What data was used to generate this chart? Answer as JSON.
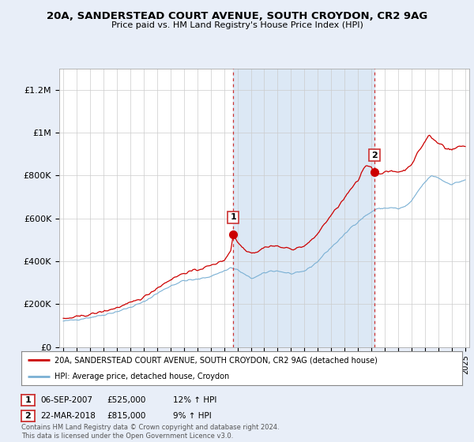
{
  "title_line1": "20A, SANDERSTEAD COURT AVENUE, SOUTH CROYDON, CR2 9AG",
  "title_line2": "Price paid vs. HM Land Registry's House Price Index (HPI)",
  "background_color": "#e8eef8",
  "plot_bg_color": "#ffffff",
  "legend_label_red": "20A, SANDERSTEAD COURT AVENUE, SOUTH CROYDON, CR2 9AG (detached house)",
  "legend_label_blue": "HPI: Average price, detached house, Croydon",
  "footer": "Contains HM Land Registry data © Crown copyright and database right 2024.\nThis data is licensed under the Open Government Licence v3.0.",
  "sale1_date": "06-SEP-2007",
  "sale1_price": "£525,000",
  "sale1_hpi": "12% ↑ HPI",
  "sale2_date": "22-MAR-2018",
  "sale2_price": "£815,000",
  "sale2_hpi": "9% ↑ HPI",
  "sale_years": [
    2007.68,
    2018.22
  ],
  "sale_prices": [
    525000,
    815000
  ],
  "red_line_color": "#cc0000",
  "blue_line_color": "#7ab0d4",
  "blue_shade_color": "#dce8f5",
  "vline_color": "#cc3333",
  "ylim": [
    0,
    1300000
  ],
  "xlim_start": 1994.7,
  "xlim_end": 2025.3,
  "yticks": [
    0,
    200000,
    400000,
    600000,
    800000,
    1000000,
    1200000
  ],
  "ytick_labels": [
    "£0",
    "£200K",
    "£400K",
    "£600K",
    "£800K",
    "£1M",
    "£1.2M"
  ],
  "xticks": [
    1995,
    1996,
    1997,
    1998,
    1999,
    2000,
    2001,
    2002,
    2003,
    2004,
    2005,
    2006,
    2007,
    2008,
    2009,
    2010,
    2011,
    2012,
    2013,
    2014,
    2015,
    2016,
    2017,
    2018,
    2019,
    2020,
    2021,
    2022,
    2023,
    2024,
    2025
  ]
}
